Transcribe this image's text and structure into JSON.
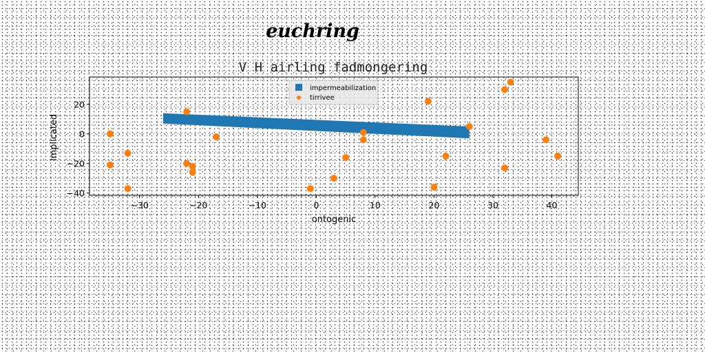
{
  "chart_data": {
    "type": "scatter",
    "suptitle": "euchring",
    "title": "V H airling fadmongering",
    "xlabel": "ontogenic",
    "ylabel": "implicated",
    "xlim": [
      -38.5,
      44.5
    ],
    "ylim": [
      -41.5,
      38.5
    ],
    "xticks": [
      -30,
      -20,
      -10,
      0,
      10,
      20,
      30,
      40
    ],
    "yticks": [
      -40,
      -20,
      0,
      20
    ],
    "xtick_labels": [
      "−30",
      "−20",
      "−10",
      "0",
      "10",
      "20",
      "30",
      "40"
    ],
    "ytick_labels": [
      "−40",
      "−20",
      "0",
      "20"
    ],
    "grid": false,
    "legend_position": "upper center",
    "series": [
      {
        "name": "impermeabilization",
        "kind": "band",
        "color": "#1f77b4",
        "x": [
          -26,
          26
        ],
        "y_upper": [
          14,
          5
        ],
        "y_lower": [
          7,
          -3
        ]
      },
      {
        "name": "tirrivee",
        "kind": "points",
        "color": "#ff7f0e",
        "points": [
          [
            -35,
            0
          ],
          [
            -35,
            -21
          ],
          [
            -32,
            -13
          ],
          [
            -32,
            -37
          ],
          [
            -22,
            15
          ],
          [
            -22,
            -20
          ],
          [
            -21,
            -22
          ],
          [
            -21,
            -26
          ],
          [
            -17,
            -2
          ],
          [
            -1,
            -37
          ],
          [
            3,
            -30
          ],
          [
            5,
            -16
          ],
          [
            8,
            1
          ],
          [
            8,
            -4
          ],
          [
            19,
            22
          ],
          [
            20,
            -36
          ],
          [
            22,
            -15
          ],
          [
            26,
            5
          ],
          [
            32,
            30
          ],
          [
            32,
            -23
          ],
          [
            33,
            35
          ],
          [
            39,
            -4
          ],
          [
            41,
            -15
          ]
        ]
      }
    ]
  }
}
